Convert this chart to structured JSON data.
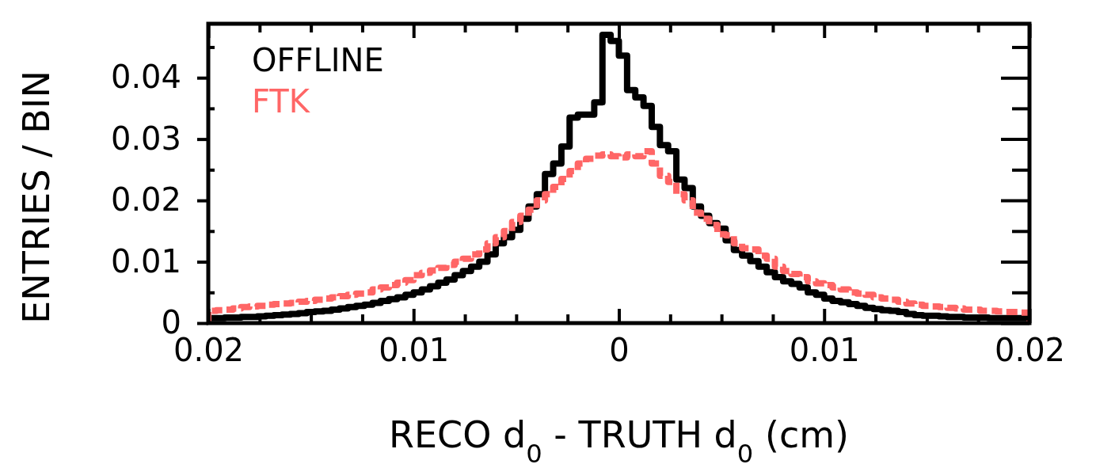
{
  "chart_data": {
    "type": "histogram",
    "xlabel": "RECO d$_{0}$ - TRUTH d$_{0}$ (cm)",
    "ylabel": "ENTRIES / BIN",
    "xlim": [
      -0.02,
      0.02
    ],
    "xticks": [
      {
        "value": -0.02,
        "label": "0.02"
      },
      {
        "value": -0.0175,
        "label": null
      },
      {
        "value": -0.015,
        "label": null
      },
      {
        "value": -0.0125,
        "label": null
      },
      {
        "value": -0.01,
        "label": "0.01"
      },
      {
        "value": -0.0075,
        "label": null
      },
      {
        "value": -0.005,
        "label": null
      },
      {
        "value": -0.0025,
        "label": null
      },
      {
        "value": 0,
        "label": "0"
      },
      {
        "value": 0.0025,
        "label": null
      },
      {
        "value": 0.005,
        "label": null
      },
      {
        "value": 0.0075,
        "label": null
      },
      {
        "value": 0.01,
        "label": "0.01"
      },
      {
        "value": 0.0125,
        "label": null
      },
      {
        "value": 0.015,
        "label": null
      },
      {
        "value": 0.0175,
        "label": null
      },
      {
        "value": 0.02,
        "label": "0.02"
      }
    ],
    "ylim": [
      0,
      0.0488
    ],
    "yticks": [
      0,
      {
        "value": 0.005,
        "label": null
      },
      0.01,
      {
        "value": 0.015,
        "label": null
      },
      0.02,
      {
        "value": 0.025,
        "label": null
      },
      0.03,
      {
        "value": 0.035,
        "label": null
      },
      0.04,
      {
        "value": 0.045,
        "label": null
      }
    ],
    "legend": "top left",
    "grid": false,
    "bins": [
      -0.02,
      -0.0196,
      -0.0192,
      -0.0188,
      -0.0184,
      -0.018,
      -0.0176,
      -0.0172,
      -0.0168,
      -0.0164,
      -0.016,
      -0.0156,
      -0.0152,
      -0.0148,
      -0.0144,
      -0.014,
      -0.0136,
      -0.0132,
      -0.0128,
      -0.0124,
      -0.012,
      -0.0116,
      -0.0112,
      -0.0108,
      -0.0104,
      -0.01,
      -0.0096,
      -0.0092,
      -0.0088,
      -0.0084,
      -0.008,
      -0.0076,
      -0.0072,
      -0.0068,
      -0.0064,
      -0.006,
      -0.0056,
      -0.0052,
      -0.0048,
      -0.0044,
      -0.004,
      -0.0036,
      -0.0032,
      -0.0028,
      -0.0024,
      -0.002,
      -0.0016,
      -0.0012,
      -0.0008,
      -0.0004,
      0,
      0.0004,
      0.0008,
      0.0012,
      0.0016,
      0.002,
      0.0024,
      0.0028,
      0.0032,
      0.0036,
      0.004,
      0.0044,
      0.0048,
      0.0052,
      0.0056,
      0.006,
      0.0064,
      0.0068,
      0.0072,
      0.0076,
      0.008,
      0.0084,
      0.0088,
      0.0092,
      0.0096,
      0.01,
      0.0104,
      0.0108,
      0.0112,
      0.0116,
      0.012,
      0.0124,
      0.0128,
      0.0132,
      0.0136,
      0.014,
      0.0144,
      0.0148,
      0.0152,
      0.0156,
      0.016,
      0.0164,
      0.0168,
      0.0172,
      0.0176,
      0.018,
      0.0184,
      0.0188,
      0.0192,
      0.0196,
      0.02
    ],
    "series": [
      {
        "name": "OFFLINE",
        "color": "#000000",
        "line_style": "solid",
        "values": [
          0.0008,
          0.0008,
          0.0009,
          0.0009,
          0.001,
          0.001,
          0.0011,
          0.0012,
          0.0013,
          0.0014,
          0.0015,
          0.0016,
          0.0018,
          0.0019,
          0.002,
          0.0022,
          0.0024,
          0.0026,
          0.0028,
          0.003,
          0.0033,
          0.0036,
          0.0039,
          0.0042,
          0.0046,
          0.005,
          0.0055,
          0.006,
          0.0066,
          0.0071,
          0.0078,
          0.0085,
          0.0092,
          0.01,
          0.0112,
          0.013,
          0.014,
          0.0152,
          0.017,
          0.019,
          0.021,
          0.0243,
          0.026,
          0.0288,
          0.0335,
          0.034,
          0.034,
          0.036,
          0.047,
          0.046,
          0.0436,
          0.038,
          0.0368,
          0.0354,
          0.032,
          0.029,
          0.028,
          0.0234,
          0.022,
          0.019,
          0.0175,
          0.0163,
          0.0154,
          0.0135,
          0.0119,
          0.011,
          0.0101,
          0.0092,
          0.0083,
          0.0075,
          0.0068,
          0.0064,
          0.0058,
          0.005,
          0.0046,
          0.004,
          0.0036,
          0.0034,
          0.0031,
          0.0028,
          0.0025,
          0.0023,
          0.0021,
          0.002,
          0.0018,
          0.0015,
          0.0013,
          0.0012,
          0.0012,
          0.0011,
          0.001,
          0.001,
          0.0009,
          0.0009,
          0.0009,
          0.0008,
          0.0008,
          0.0008,
          0.0008,
          0.0008
        ]
      },
      {
        "name": "FTK",
        "color": "#ff6666",
        "line_style": "dashed",
        "values": [
          0.002,
          0.0021,
          0.0022,
          0.0024,
          0.0026,
          0.0027,
          0.0028,
          0.003,
          0.0031,
          0.0032,
          0.0033,
          0.0035,
          0.0036,
          0.0038,
          0.004,
          0.0042,
          0.0044,
          0.0046,
          0.0048,
          0.005,
          0.0055,
          0.0058,
          0.0062,
          0.0066,
          0.007,
          0.0078,
          0.0082,
          0.0086,
          0.009,
          0.0095,
          0.01,
          0.0105,
          0.0112,
          0.012,
          0.013,
          0.014,
          0.015,
          0.0165,
          0.0175,
          0.0185,
          0.02,
          0.021,
          0.0222,
          0.0235,
          0.0248,
          0.026,
          0.0268,
          0.0273,
          0.0275,
          0.0272,
          0.027,
          0.0275,
          0.0272,
          0.028,
          0.026,
          0.024,
          0.023,
          0.021,
          0.02,
          0.018,
          0.017,
          0.016,
          0.0145,
          0.0143,
          0.013,
          0.0122,
          0.012,
          0.011,
          0.0105,
          0.0092,
          0.0085,
          0.008,
          0.0075,
          0.0068,
          0.0065,
          0.0062,
          0.0058,
          0.0055,
          0.005,
          0.0048,
          0.0046,
          0.0042,
          0.004,
          0.0038,
          0.0035,
          0.0032,
          0.003,
          0.0028,
          0.0027,
          0.0026,
          0.0025,
          0.0024,
          0.0022,
          0.0022,
          0.002,
          0.002,
          0.0019,
          0.0018,
          0.0018,
          0.0017
        ]
      }
    ]
  }
}
